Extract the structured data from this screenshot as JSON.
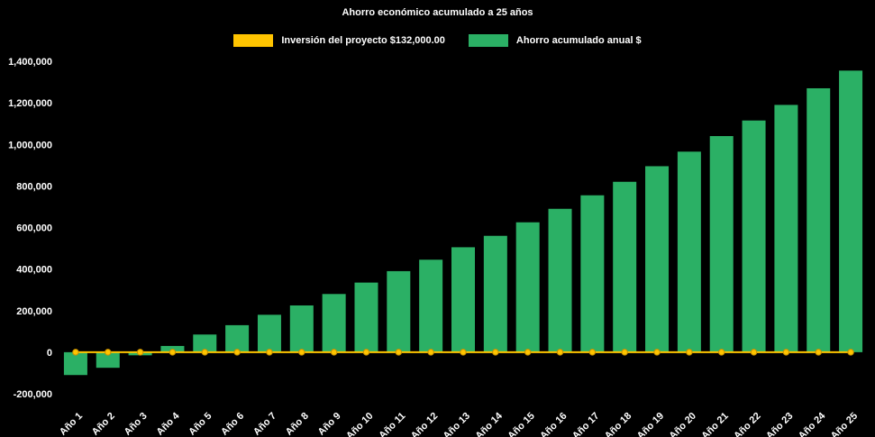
{
  "page": {
    "background_color": "#000000",
    "text_color": "#FFFFFF"
  },
  "chart_data": {
    "type": "bar",
    "title": "Ahorro económico acumulado a 25 años",
    "categories": [
      "Año 1",
      "Año 2",
      "Año 3",
      "Año 4",
      "Año 5",
      "Año 6",
      "Año 7",
      "Año 8",
      "Año 9",
      "Año 10",
      "Año 11",
      "Año 12",
      "Año 13",
      "Año 14",
      "Año 15",
      "Año 16",
      "Año 17",
      "Año 18",
      "Año 19",
      "Año 20",
      "Año 21",
      "Año 22",
      "Año 23",
      "Año 24",
      "Año 25"
    ],
    "series": [
      {
        "name": "Inversión del proyecto $132,000.00",
        "type": "line",
        "color": "#FFC400",
        "marker_stroke": "#C89000",
        "values": [
          0,
          0,
          0,
          0,
          0,
          0,
          0,
          0,
          0,
          0,
          0,
          0,
          0,
          0,
          0,
          0,
          0,
          0,
          0,
          0,
          0,
          0,
          0,
          0,
          0
        ]
      },
      {
        "name": "Ahorro acumulado anual $",
        "type": "bar",
        "color": "#2BB065",
        "values": [
          -110000,
          -75000,
          -15000,
          30000,
          85000,
          130000,
          180000,
          225000,
          280000,
          335000,
          390000,
          445000,
          505000,
          560000,
          625000,
          690000,
          755000,
          820000,
          895000,
          965000,
          1040000,
          1115000,
          1190000,
          1270000,
          1355000
        ]
      }
    ],
    "ylim": [
      -200000,
      1400000
    ],
    "ytick_step": 200000,
    "ytick_labels": [
      "-200,000",
      "0",
      "200,000",
      "400,000",
      "600,000",
      "800,000",
      "1,000,000",
      "1,200,000",
      "1,400,000"
    ],
    "grid": false,
    "legend_position": "top",
    "xlabel": "",
    "ylabel": ""
  }
}
